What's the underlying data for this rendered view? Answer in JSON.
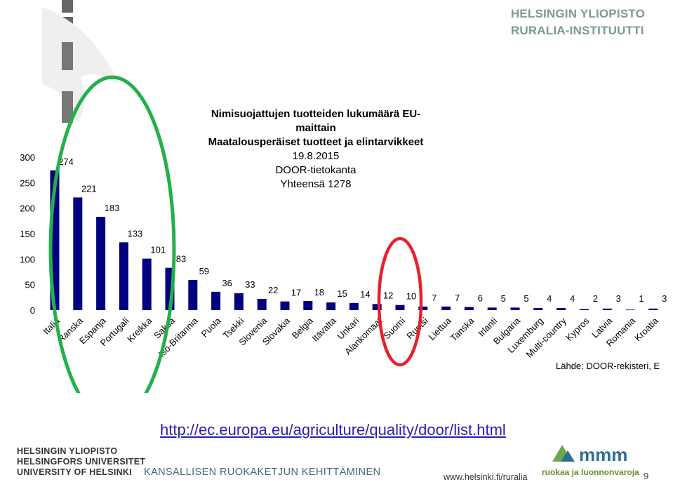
{
  "header": {
    "line1": "HELSINGIN YLIOPISTO",
    "line2": "RURALIA-INSTITUUTTI"
  },
  "chart_data": {
    "type": "bar",
    "title": "Nimisuojattujen tuotteiden lukumäärä EU-maittain",
    "subtitle": "Maatalousperäiset tuotteet ja elintarvikkeet",
    "date": "19.8.2015",
    "source_db": "DOOR-tietokanta",
    "total": "Yhteensä 1278",
    "categories": [
      "Italia",
      "Ranska",
      "Espanja",
      "Portugali",
      "Kreikka",
      "Saksa",
      "Iso-Britannia",
      "Puola",
      "Tsekki",
      "Slovenia",
      "Slovakia",
      "Belgia",
      "Itävalta",
      "Unkari",
      "Alankomaat",
      "Suomi",
      "Ruotsi",
      "Liettua",
      "Tanska",
      "Irlanti",
      "Bulgaria",
      "Luxemburg",
      "Multi-country",
      "Kypros",
      "Latvia",
      "Romania",
      "Kroatia"
    ],
    "values": [
      274,
      221,
      183,
      133,
      101,
      83,
      59,
      36,
      33,
      22,
      17,
      18,
      15,
      14,
      12,
      10,
      7,
      7,
      6,
      5,
      5,
      4,
      4,
      2,
      3,
      1,
      3
    ],
    "ylim": [
      0,
      300
    ],
    "yticks": [
      0,
      50,
      100,
      150,
      200,
      250,
      300
    ],
    "bar_color": "#000080",
    "grid": false,
    "highlight_ellipses": [
      {
        "around": "Italia–Saksa",
        "color": "#22b04a"
      },
      {
        "around": "Suomi",
        "color": "#e8202a"
      }
    ]
  },
  "source": "Lähde: DOOR-rekisteri, E",
  "link": "http://ec.europa.eu/agriculture/quality/door/list.html",
  "footer": {
    "university_lines": [
      "HELSINGIN YLIOPISTO",
      "HELSINGFORS UNIVERSITET",
      "UNIVERSITY OF HELSINKI"
    ],
    "program": "KANSALLISEN RUOKAKETJUN KEHITTÄMINEN",
    "url": "www.helsinki.fi/ruralia",
    "logo_brand": "mmm.fi",
    "logo_tagline": "ruokaa ja luonnonvaroja",
    "page": "9"
  }
}
